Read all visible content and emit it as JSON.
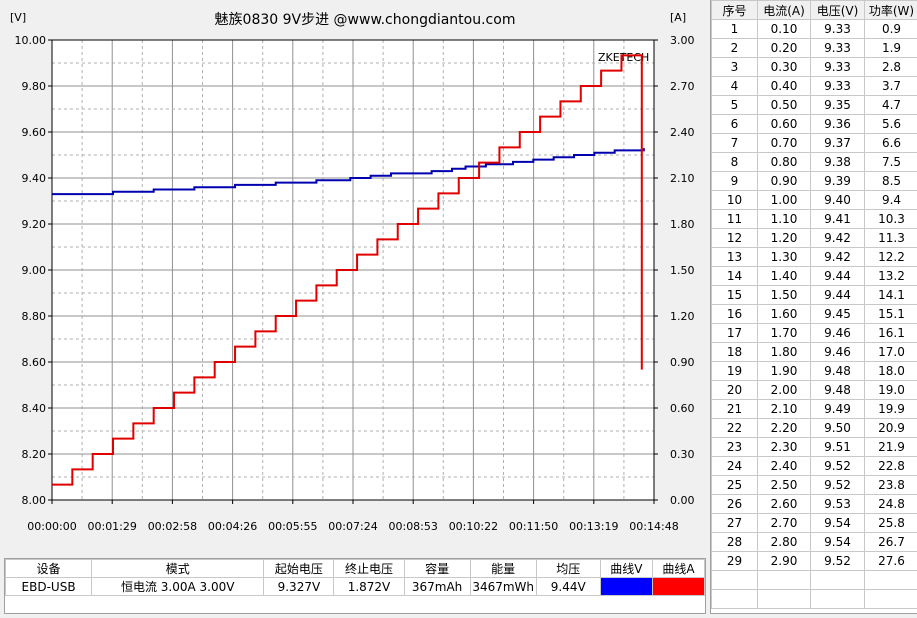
{
  "title": "魅族0830  9V步进 @www.chongdiantou.com",
  "watermark": "ZKETECH",
  "chart_data": {
    "type": "line",
    "title": "魅族0830  9V步进 @www.chongdiantou.com",
    "left_axis_unit": "[V]",
    "right_axis_unit": "[A]",
    "ylim_left": [
      8.0,
      10.0
    ],
    "ylim_right": [
      0.0,
      3.0
    ],
    "xlim_seconds": [
      0,
      888
    ],
    "grid": true,
    "y_left_ticks": [
      "10.00",
      "9.80",
      "9.60",
      "9.40",
      "9.20",
      "9.00",
      "8.80",
      "8.60",
      "8.40",
      "8.20",
      "8.00"
    ],
    "y_right_ticks": [
      "3.00",
      "2.70",
      "2.40",
      "2.10",
      "1.80",
      "1.50",
      "1.20",
      "0.90",
      "0.60",
      "0.30",
      "0.00"
    ],
    "x_ticks": [
      "00:00:00",
      "00:01:29",
      "00:02:58",
      "00:04:26",
      "00:05:55",
      "00:07:24",
      "00:08:53",
      "00:10:22",
      "00:11:50",
      "00:13:19",
      "00:14:48"
    ],
    "series": [
      {
        "axis": "left",
        "color": "#0000b0",
        "x": [
          0,
          50,
          90,
          150,
          210,
          270,
          330,
          390,
          440,
          470,
          500,
          530,
          560,
          590,
          610,
          640,
          680,
          710,
          740,
          770,
          800,
          830,
          860,
          873
        ],
        "y": [
          9.33,
          9.33,
          9.34,
          9.35,
          9.36,
          9.37,
          9.38,
          9.39,
          9.4,
          9.41,
          9.42,
          9.42,
          9.43,
          9.44,
          9.45,
          9.46,
          9.47,
          9.48,
          9.49,
          9.5,
          9.51,
          9.52,
          9.52,
          9.53
        ]
      },
      {
        "axis": "right",
        "color": "#e00000",
        "step_width_seconds": 30,
        "values": [
          0.1,
          0.2,
          0.3,
          0.4,
          0.5,
          0.6,
          0.7,
          0.8,
          0.9,
          1.0,
          1.1,
          1.2,
          1.3,
          1.4,
          1.5,
          1.6,
          1.7,
          1.8,
          1.9,
          2.0,
          2.1,
          2.2,
          2.3,
          2.4,
          2.5,
          2.6,
          2.7,
          2.8,
          2.9
        ],
        "drop_to": 0.85
      }
    ]
  },
  "summary": {
    "headers": [
      "设备",
      "模式",
      "起始电压",
      "终止电压",
      "容量",
      "能量",
      "均压",
      "曲线V",
      "曲线A"
    ],
    "values": [
      "EBD-USB",
      "恒电流  3.00A  3.00V",
      "9.327V",
      "1.872V",
      "367mAh",
      "3467mWh",
      "9.44V",
      "",
      ""
    ],
    "curve_v_color": "#0000ff",
    "curve_a_color": "#ff0000"
  },
  "table": {
    "headers": [
      "序号",
      "电流(A)",
      "电压(V)",
      "功率(W)"
    ],
    "rows": [
      [
        "1",
        "0.10",
        "9.33",
        "0.9"
      ],
      [
        "2",
        "0.20",
        "9.33",
        "1.9"
      ],
      [
        "3",
        "0.30",
        "9.33",
        "2.8"
      ],
      [
        "4",
        "0.40",
        "9.33",
        "3.7"
      ],
      [
        "5",
        "0.50",
        "9.35",
        "4.7"
      ],
      [
        "6",
        "0.60",
        "9.36",
        "5.6"
      ],
      [
        "7",
        "0.70",
        "9.37",
        "6.6"
      ],
      [
        "8",
        "0.80",
        "9.38",
        "7.5"
      ],
      [
        "9",
        "0.90",
        "9.39",
        "8.5"
      ],
      [
        "10",
        "1.00",
        "9.40",
        "9.4"
      ],
      [
        "11",
        "1.10",
        "9.41",
        "10.3"
      ],
      [
        "12",
        "1.20",
        "9.42",
        "11.3"
      ],
      [
        "13",
        "1.30",
        "9.42",
        "12.2"
      ],
      [
        "14",
        "1.40",
        "9.44",
        "13.2"
      ],
      [
        "15",
        "1.50",
        "9.44",
        "14.1"
      ],
      [
        "16",
        "1.60",
        "9.45",
        "15.1"
      ],
      [
        "17",
        "1.70",
        "9.46",
        "16.1"
      ],
      [
        "18",
        "1.80",
        "9.46",
        "17.0"
      ],
      [
        "19",
        "1.90",
        "9.48",
        "18.0"
      ],
      [
        "20",
        "2.00",
        "9.48",
        "19.0"
      ],
      [
        "21",
        "2.10",
        "9.49",
        "19.9"
      ],
      [
        "22",
        "2.20",
        "9.50",
        "20.9"
      ],
      [
        "23",
        "2.30",
        "9.51",
        "21.9"
      ],
      [
        "24",
        "2.40",
        "9.52",
        "22.8"
      ],
      [
        "25",
        "2.50",
        "9.52",
        "23.8"
      ],
      [
        "26",
        "2.60",
        "9.53",
        "24.8"
      ],
      [
        "27",
        "2.70",
        "9.54",
        "25.8"
      ],
      [
        "28",
        "2.80",
        "9.54",
        "26.7"
      ],
      [
        "29",
        "2.90",
        "9.52",
        "27.6"
      ]
    ]
  }
}
